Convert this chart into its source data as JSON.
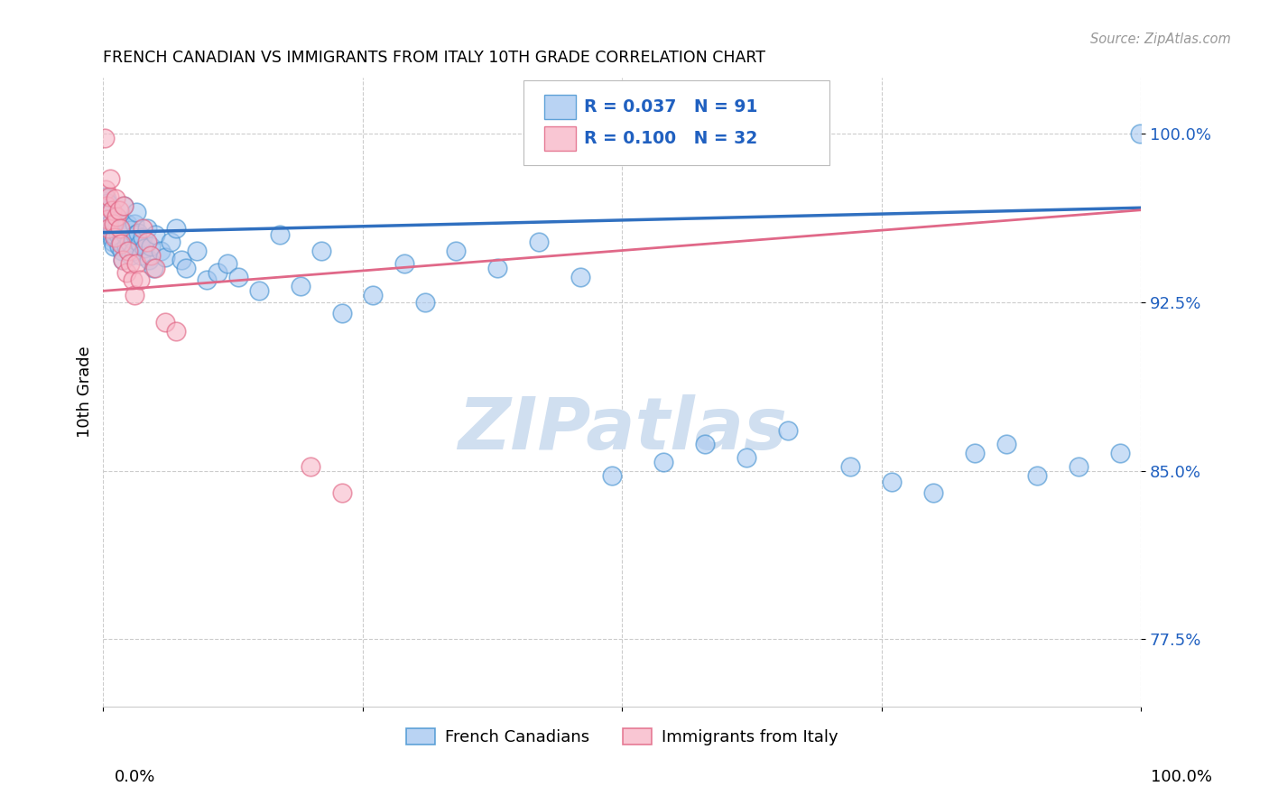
{
  "title": "FRENCH CANADIAN VS IMMIGRANTS FROM ITALY 10TH GRADE CORRELATION CHART",
  "source": "Source: ZipAtlas.com",
  "ylabel": "10th Grade",
  "ytick_labels": [
    "77.5%",
    "85.0%",
    "92.5%",
    "100.0%"
  ],
  "ytick_values": [
    0.775,
    0.85,
    0.925,
    1.0
  ],
  "legend_blue_r": "R = 0.037",
  "legend_blue_n": "N = 91",
  "legend_pink_r": "R = 0.100",
  "legend_pink_n": "N = 32",
  "blue_face": "#a8c8f0",
  "blue_edge": "#4090d0",
  "pink_face": "#f8b8c8",
  "pink_edge": "#e06080",
  "blue_line": "#3070c0",
  "pink_line": "#e06888",
  "legend_text_color": "#2060c0",
  "watermark_color": "#d0dff0",
  "source_color": "#999999",
  "grid_color": "#cccccc",
  "blue_scatter_x": [
    0.001,
    0.002,
    0.002,
    0.003,
    0.003,
    0.003,
    0.004,
    0.004,
    0.004,
    0.005,
    0.005,
    0.006,
    0.006,
    0.006,
    0.007,
    0.007,
    0.008,
    0.008,
    0.009,
    0.009,
    0.01,
    0.01,
    0.011,
    0.012,
    0.013,
    0.014,
    0.015,
    0.015,
    0.016,
    0.017,
    0.018,
    0.019,
    0.02,
    0.021,
    0.022,
    0.023,
    0.025,
    0.026,
    0.027,
    0.028,
    0.029,
    0.03,
    0.031,
    0.032,
    0.034,
    0.035,
    0.036,
    0.038,
    0.04,
    0.042,
    0.044,
    0.046,
    0.048,
    0.05,
    0.055,
    0.06,
    0.065,
    0.07,
    0.075,
    0.08,
    0.09,
    0.1,
    0.11,
    0.12,
    0.13,
    0.15,
    0.17,
    0.19,
    0.21,
    0.23,
    0.26,
    0.29,
    0.31,
    0.34,
    0.38,
    0.42,
    0.46,
    0.49,
    0.54,
    0.58,
    0.62,
    0.66,
    0.72,
    0.76,
    0.8,
    0.84,
    0.87,
    0.9,
    0.94,
    0.98,
    0.999
  ],
  "blue_scatter_y": [
    0.972,
    0.967,
    0.97,
    0.964,
    0.968,
    0.971,
    0.963,
    0.966,
    0.969,
    0.96,
    0.964,
    0.958,
    0.961,
    0.965,
    0.956,
    0.96,
    0.954,
    0.958,
    0.952,
    0.957,
    0.95,
    0.955,
    0.96,
    0.963,
    0.958,
    0.955,
    0.95,
    0.962,
    0.957,
    0.952,
    0.948,
    0.944,
    0.968,
    0.955,
    0.95,
    0.96,
    0.952,
    0.957,
    0.946,
    0.953,
    0.948,
    0.96,
    0.955,
    0.965,
    0.956,
    0.951,
    0.946,
    0.954,
    0.949,
    0.958,
    0.944,
    0.95,
    0.94,
    0.955,
    0.948,
    0.945,
    0.952,
    0.958,
    0.944,
    0.94,
    0.948,
    0.935,
    0.938,
    0.942,
    0.936,
    0.93,
    0.955,
    0.932,
    0.948,
    0.92,
    0.928,
    0.942,
    0.925,
    0.948,
    0.94,
    0.952,
    0.936,
    0.848,
    0.854,
    0.862,
    0.856,
    0.868,
    0.852,
    0.845,
    0.84,
    0.858,
    0.862,
    0.848,
    0.852,
    0.858,
    1.0
  ],
  "pink_scatter_x": [
    0.001,
    0.002,
    0.003,
    0.004,
    0.005,
    0.006,
    0.007,
    0.008,
    0.01,
    0.011,
    0.012,
    0.013,
    0.015,
    0.016,
    0.017,
    0.019,
    0.02,
    0.022,
    0.024,
    0.026,
    0.028,
    0.03,
    0.032,
    0.035,
    0.038,
    0.042,
    0.046,
    0.05,
    0.06,
    0.07,
    0.2,
    0.23
  ],
  "pink_scatter_y": [
    0.998,
    0.975,
    0.968,
    0.962,
    0.958,
    0.972,
    0.98,
    0.966,
    0.96,
    0.954,
    0.971,
    0.963,
    0.966,
    0.958,
    0.951,
    0.944,
    0.968,
    0.938,
    0.948,
    0.942,
    0.935,
    0.928,
    0.942,
    0.935,
    0.958,
    0.952,
    0.946,
    0.94,
    0.916,
    0.912,
    0.852,
    0.84
  ],
  "blue_trend_x": [
    0.0,
    1.0
  ],
  "blue_trend_y_start": 0.956,
  "blue_trend_y_end": 0.967,
  "pink_trend_x": [
    0.0,
    1.0
  ],
  "pink_trend_y_start": 0.93,
  "pink_trend_y_end": 0.966,
  "xlim": [
    0.0,
    1.0
  ],
  "ylim": [
    0.745,
    1.025
  ],
  "figsize": [
    14.06,
    8.92
  ],
  "dpi": 100,
  "marker_size": 220,
  "bottom_legend_entries": [
    "French Canadians",
    "Immigrants from Italy"
  ]
}
